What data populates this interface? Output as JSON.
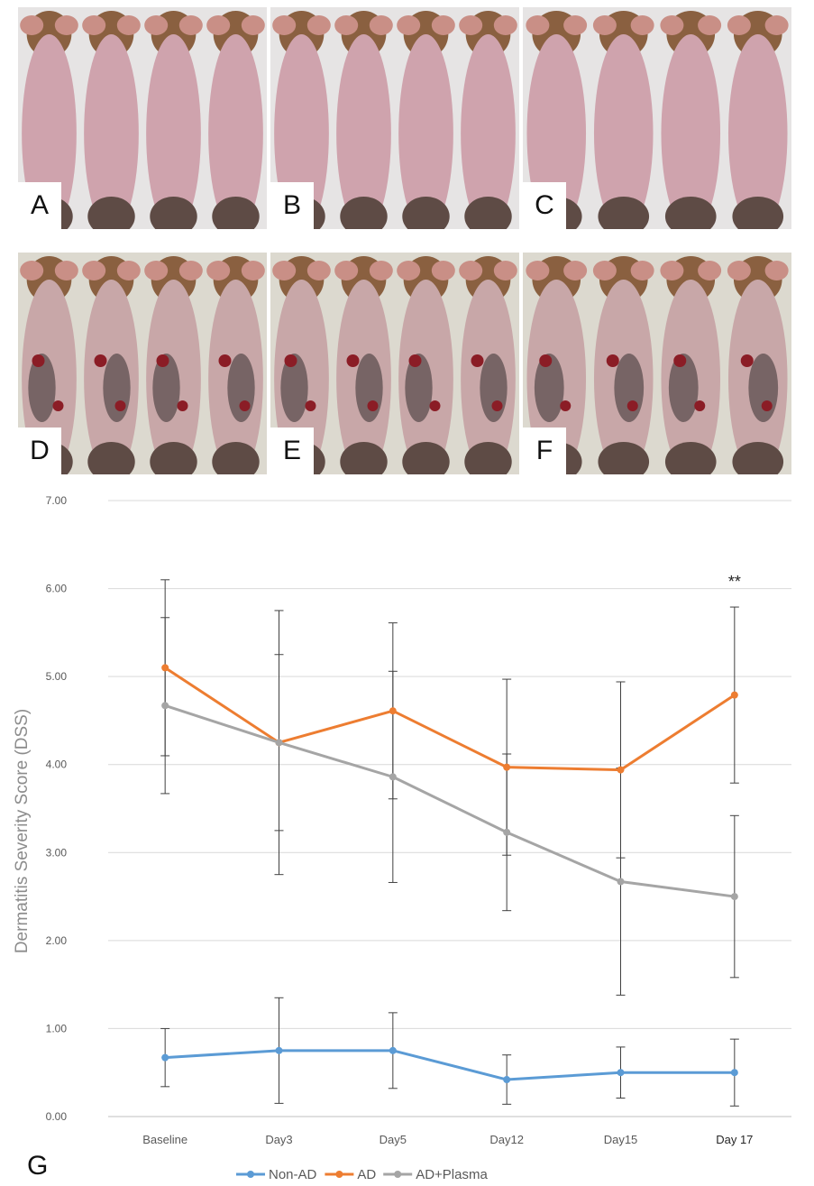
{
  "panels": [
    {
      "label": "A",
      "variant": "healthy"
    },
    {
      "label": "B",
      "variant": "healthy"
    },
    {
      "label": "C",
      "variant": "healthy"
    },
    {
      "label": "D",
      "variant": "lesion"
    },
    {
      "label": "E",
      "variant": "lesion"
    },
    {
      "label": "F",
      "variant": "lesion"
    }
  ],
  "figure_label": "G",
  "chart_data": {
    "type": "line",
    "categories": [
      "Baseline",
      "Day3",
      "Day5",
      "Day12",
      "Day15",
      "Day 17"
    ],
    "ylabel": "Dermatitis Severity Score (DSS)",
    "ylim": [
      0,
      7
    ],
    "yticks": [
      "0.00",
      "1.00",
      "2.00",
      "3.00",
      "4.00",
      "5.00",
      "6.00",
      "7.00"
    ],
    "grid": true,
    "legend_position": "bottom",
    "annotation": "**",
    "series": [
      {
        "name": "Non-AD",
        "color": "#5b9bd5",
        "values": [
          0.67,
          0.75,
          0.75,
          0.42,
          0.5,
          0.5
        ],
        "errors": [
          0.33,
          0.6,
          0.43,
          0.28,
          0.29,
          0.38
        ]
      },
      {
        "name": "AD",
        "color": "#ed7d31",
        "values": [
          5.1,
          4.25,
          4.61,
          3.97,
          3.94,
          4.79
        ],
        "errors": [
          1.0,
          1.5,
          1.0,
          1.0,
          1.0,
          1.0
        ]
      },
      {
        "name": "AD+Plasma",
        "color": "#a5a5a5",
        "values": [
          4.67,
          4.25,
          3.86,
          3.23,
          2.67,
          2.5
        ],
        "errors": [
          1.0,
          1.0,
          1.2,
          0.89,
          1.29,
          0.92
        ]
      }
    ]
  }
}
